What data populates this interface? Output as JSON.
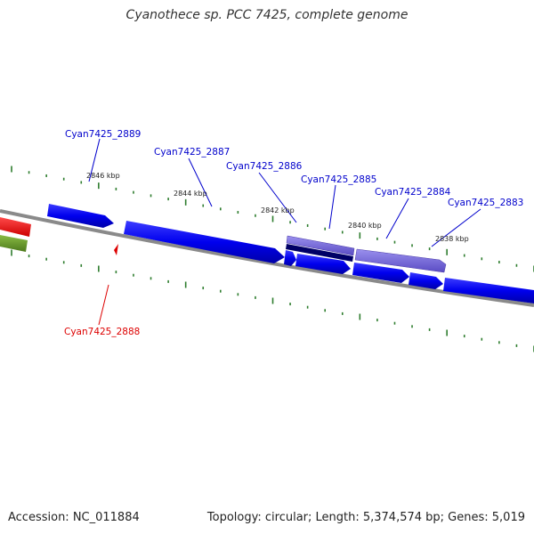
{
  "title": "Cyanothece sp. PCC 7425, complete genome",
  "footer": {
    "accession": "Accession: NC_011884",
    "summary": "Topology: circular; Length: 5,374,574 bp; Genes: 5,019"
  },
  "colors": {
    "forward_gene": "#0000ee",
    "selected_gene": "#7366d6",
    "reverse_gene_red": "#ff0000",
    "reverse_gene_green": "#6a9a2a",
    "backbone": "#808080",
    "ticks": "#2e7d2e",
    "label_blue": "#0000cc",
    "label_red": "#dd0000"
  },
  "scale_labels": [
    "2846 kbp",
    "2844 kbp",
    "2842 kbp",
    "2840 kbp",
    "2838 kbp"
  ],
  "gene_labels": [
    {
      "name": "Cyan7425_2889",
      "strand": "forward"
    },
    {
      "name": "Cyan7425_2887",
      "strand": "forward"
    },
    {
      "name": "Cyan7425_2886",
      "strand": "forward"
    },
    {
      "name": "Cyan7425_2885",
      "strand": "forward"
    },
    {
      "name": "Cyan7425_2884",
      "strand": "forward"
    },
    {
      "name": "Cyan7425_2883",
      "strand": "forward"
    },
    {
      "name": "Cyan7425_2888",
      "strand": "reverse"
    }
  ]
}
